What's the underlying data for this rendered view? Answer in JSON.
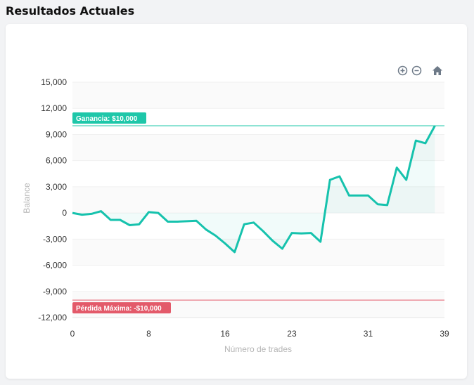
{
  "header": {
    "title": "Resultados Actuales"
  },
  "toolbar": {
    "zoom_in_icon": "zoom-in-icon",
    "zoom_out_icon": "zoom-out-icon",
    "reset_icon": "home-icon"
  },
  "colors": {
    "line": "#16c2ad",
    "target": "#1ec7a9",
    "loss": "#e35a6a",
    "grid": "#f0f0f0",
    "band": "#fafafa"
  },
  "chart_data": {
    "type": "area",
    "xlabel": "Número de trades",
    "ylabel": "Balance",
    "xlim": [
      0,
      39
    ],
    "ylim": [
      -12000,
      15000
    ],
    "x_ticks": [
      "0",
      "8",
      "16",
      "23",
      "31",
      "39"
    ],
    "x_tick_values": [
      0,
      8,
      16,
      23,
      31,
      39
    ],
    "y_ticks": [
      "15,000",
      "12,000",
      "9,000",
      "6,000",
      "3,000",
      "0",
      "-3,000",
      "-6,000",
      "-9,000",
      "-12,000"
    ],
    "y_tick_values": [
      15000,
      12000,
      9000,
      6000,
      3000,
      0,
      -3000,
      -6000,
      -9000,
      -12000
    ],
    "grid": true,
    "series": [
      {
        "x": [
          0,
          1,
          2,
          3,
          4,
          5,
          6,
          7,
          8,
          9,
          10,
          11,
          12,
          13,
          14,
          15,
          16,
          17,
          18,
          19,
          20,
          21,
          22,
          23,
          24,
          25,
          26,
          27,
          28,
          29,
          30,
          31,
          32,
          33,
          34,
          35,
          36,
          37,
          38,
          39
        ],
        "values": [
          0,
          -200,
          -100,
          200,
          -800,
          -800,
          -1400,
          -1300,
          100,
          0,
          -1000,
          -1000,
          -950,
          -900,
          -1900,
          -2600,
          -3500,
          -4500,
          -1300,
          -1100,
          -2100,
          -3200,
          -4100,
          -2300,
          -2350,
          -2300,
          -3300,
          3800,
          4200,
          2000,
          2000,
          2000,
          1000,
          900,
          5200,
          3800,
          8300,
          8000,
          10000,
          null
        ]
      }
    ],
    "annotations": [
      {
        "label": "Ganancia: $10,000",
        "y": 10000
      },
      {
        "label": "Pérdida Máxima: -$10,000",
        "y": -10000
      }
    ]
  }
}
